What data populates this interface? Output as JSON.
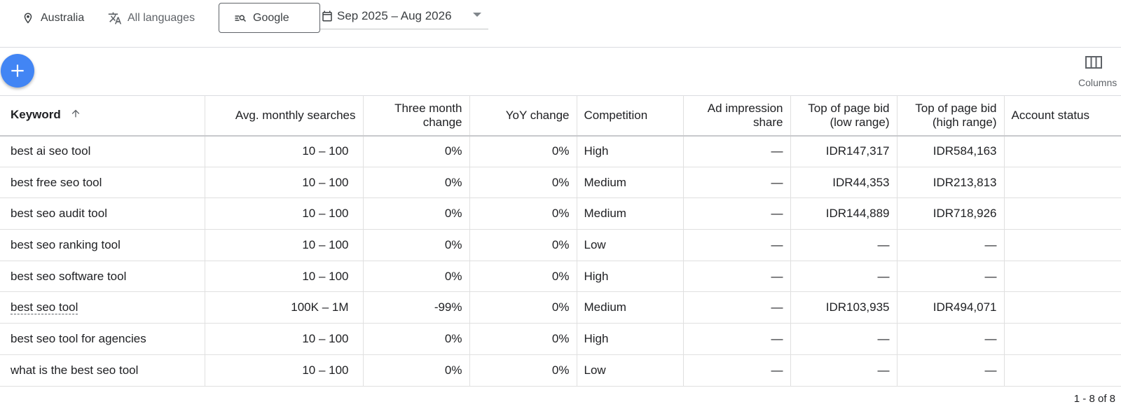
{
  "filters": {
    "location": "Australia",
    "language": "All languages",
    "network": "Google",
    "date_range": "Sep 2025 – Aug 2026"
  },
  "toolbar": {
    "columns_label": "Columns"
  },
  "table": {
    "headers": {
      "keyword": "Keyword",
      "avg_monthly": "Avg. monthly searches",
      "three_month_1": "Three month",
      "three_month_2": "change",
      "yoy": "YoY change",
      "competition": "Competition",
      "ad_share_1": "Ad impression",
      "ad_share_2": "share",
      "bid_low_1": "Top of page bid",
      "bid_low_2": "(low range)",
      "bid_high_1": "Top of page bid",
      "bid_high_2": "(high range)",
      "account_status": "Account status"
    },
    "rows": [
      {
        "keyword": "best ai seo tool",
        "avg": "10 – 100",
        "three_month": "0%",
        "yoy": "0%",
        "competition": "High",
        "ad_share": "—",
        "bid_low": "IDR147,317",
        "bid_high": "IDR584,163",
        "status": ""
      },
      {
        "keyword": "best free seo tool",
        "avg": "10 – 100",
        "three_month": "0%",
        "yoy": "0%",
        "competition": "Medium",
        "ad_share": "—",
        "bid_low": "IDR44,353",
        "bid_high": "IDR213,813",
        "status": ""
      },
      {
        "keyword": "best seo audit tool",
        "avg": "10 – 100",
        "three_month": "0%",
        "yoy": "0%",
        "competition": "Medium",
        "ad_share": "—",
        "bid_low": "IDR144,889",
        "bid_high": "IDR718,926",
        "status": ""
      },
      {
        "keyword": "best seo ranking tool",
        "avg": "10 – 100",
        "three_month": "0%",
        "yoy": "0%",
        "competition": "Low",
        "ad_share": "—",
        "bid_low": "—",
        "bid_high": "—",
        "status": ""
      },
      {
        "keyword": "best seo software tool",
        "avg": "10 – 100",
        "three_month": "0%",
        "yoy": "0%",
        "competition": "High",
        "ad_share": "—",
        "bid_low": "—",
        "bid_high": "—",
        "status": ""
      },
      {
        "keyword": "best seo tool",
        "avg": "100K – 1M",
        "three_month": "-99%",
        "yoy": "0%",
        "competition": "Medium",
        "ad_share": "—",
        "bid_low": "IDR103,935",
        "bid_high": "IDR494,071",
        "status": ""
      },
      {
        "keyword": "best seo tool for agencies",
        "avg": "10 – 100",
        "three_month": "0%",
        "yoy": "0%",
        "competition": "High",
        "ad_share": "—",
        "bid_low": "—",
        "bid_high": "—",
        "status": ""
      },
      {
        "keyword": "what is the best seo tool",
        "avg": "10 – 100",
        "three_month": "0%",
        "yoy": "0%",
        "competition": "Low",
        "ad_share": "—",
        "bid_low": "—",
        "bid_high": "—",
        "status": ""
      }
    ]
  },
  "pagination": {
    "range_text": "1 - 8 of 8"
  },
  "colors": {
    "fab": "#4285f4",
    "border": "#dadce0"
  }
}
